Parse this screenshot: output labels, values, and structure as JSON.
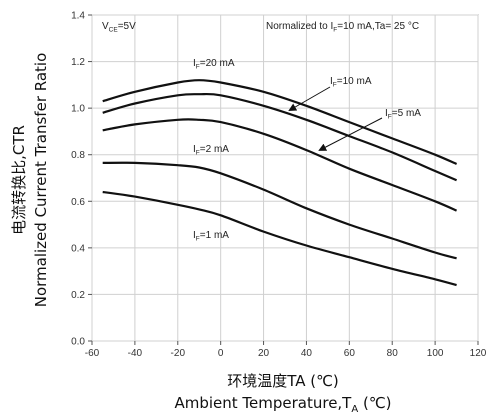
{
  "chart_data": {
    "type": "line",
    "xlabel_cn": "环境温度TA (℃)",
    "xlabel_en_main": "Ambient Temperature,T",
    "xlabel_en_sub": "A",
    "xlabel_en_tail": " (℃)",
    "ylabel_cn": "电流转换比,CTR",
    "ylabel_en": "Normalized Current Transfer Ratio",
    "note_left": {
      "prefix": "V",
      "sub": "CE",
      "suffix": "=5V"
    },
    "note_right": {
      "prefix": "Normalized to I",
      "sub": "F",
      "suffix": "=10 mA,Ta= 25 °C"
    },
    "xlim": [
      -60,
      120
    ],
    "ylim": [
      0.0,
      1.4
    ],
    "xticks": [
      -60,
      -40,
      -20,
      0,
      20,
      40,
      60,
      80,
      100,
      120
    ],
    "yticks": [
      0.0,
      0.2,
      0.4,
      0.6,
      0.8,
      1.0,
      1.2,
      1.4
    ],
    "grid": true,
    "series": [
      {
        "name": "IF=20 mA",
        "label_prefix": "I",
        "label_sub": "F",
        "label_suffix": "=20 mA",
        "x": [
          -55,
          -40,
          -20,
          -10,
          0,
          20,
          40,
          60,
          80,
          100,
          110
        ],
        "y": [
          1.03,
          1.07,
          1.11,
          1.12,
          1.11,
          1.07,
          1.01,
          0.94,
          0.87,
          0.8,
          0.76
        ]
      },
      {
        "name": "IF=10 mA",
        "label_prefix": "I",
        "label_sub": "F",
        "label_suffix": "=10 mA",
        "x": [
          -55,
          -40,
          -20,
          -10,
          0,
          20,
          40,
          60,
          80,
          100,
          110
        ],
        "y": [
          0.98,
          1.02,
          1.055,
          1.06,
          1.055,
          1.01,
          0.95,
          0.88,
          0.81,
          0.73,
          0.69
        ]
      },
      {
        "name": "IF=5 mA",
        "label_prefix": "I",
        "label_sub": "F",
        "label_suffix": "=5 mA",
        "x": [
          -55,
          -40,
          -20,
          -10,
          0,
          20,
          40,
          60,
          80,
          100,
          110
        ],
        "y": [
          0.905,
          0.93,
          0.95,
          0.95,
          0.94,
          0.89,
          0.82,
          0.74,
          0.67,
          0.6,
          0.56
        ]
      },
      {
        "name": "IF=2 mA",
        "label_prefix": "I",
        "label_sub": "F",
        "label_suffix": "=2 mA",
        "x": [
          -55,
          -40,
          -20,
          -10,
          0,
          20,
          40,
          60,
          80,
          100,
          110
        ],
        "y": [
          0.765,
          0.765,
          0.755,
          0.745,
          0.72,
          0.65,
          0.57,
          0.5,
          0.44,
          0.38,
          0.355
        ]
      },
      {
        "name": "IF=1 mA",
        "label_prefix": "I",
        "label_sub": "F",
        "label_suffix": "=1 mA",
        "x": [
          -55,
          -40,
          -20,
          -10,
          0,
          20,
          40,
          60,
          80,
          100,
          110
        ],
        "y": [
          0.64,
          0.62,
          0.585,
          0.565,
          0.54,
          0.47,
          0.41,
          0.36,
          0.31,
          0.265,
          0.24
        ]
      }
    ]
  }
}
